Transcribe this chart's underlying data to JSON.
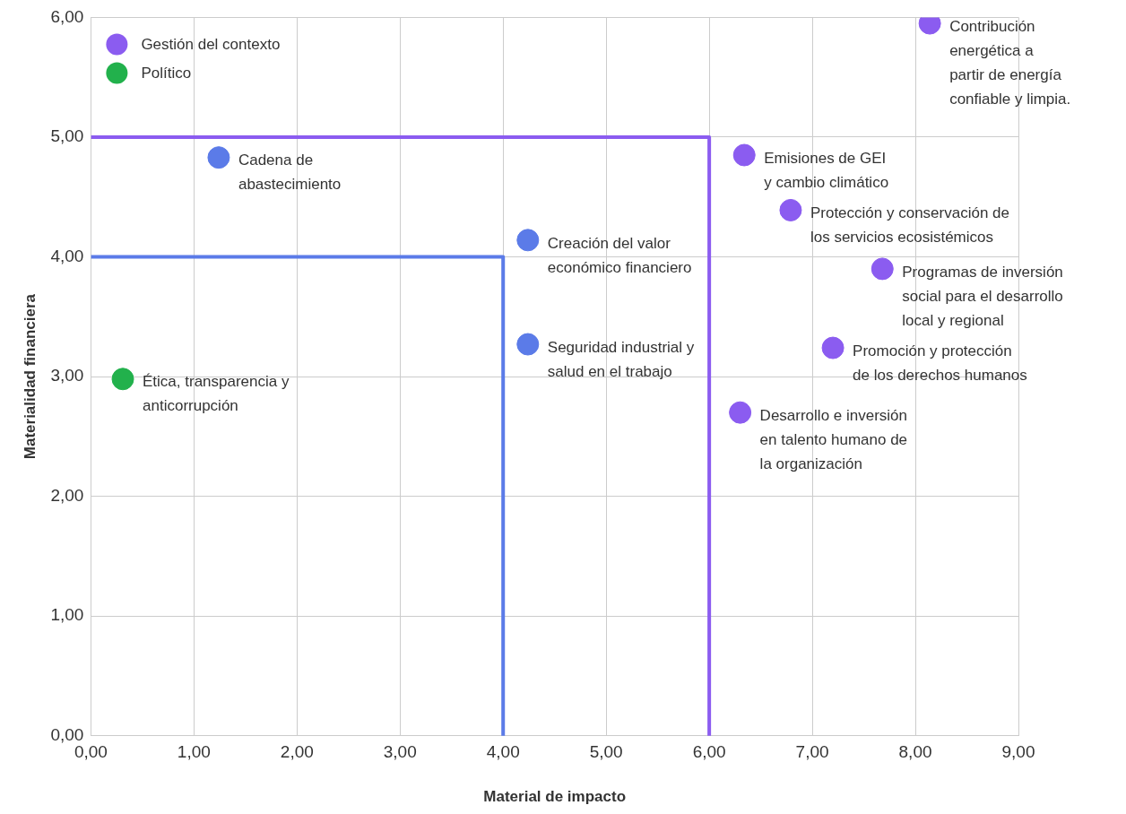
{
  "chart_data": {
    "type": "scatter",
    "xlabel": "Material de impacto",
    "ylabel": "Materialidad financiera",
    "xlim": [
      0,
      9
    ],
    "ylim": [
      0,
      6
    ],
    "xticks": [
      {
        "value": 0,
        "label": "0,00"
      },
      {
        "value": 1,
        "label": "1,00"
      },
      {
        "value": 2,
        "label": "2,00"
      },
      {
        "value": 3,
        "label": "3,00"
      },
      {
        "value": 4,
        "label": "4,00"
      },
      {
        "value": 5,
        "label": "5,00"
      },
      {
        "value": 6,
        "label": "6,00"
      },
      {
        "value": 7,
        "label": "7,00"
      },
      {
        "value": 8,
        "label": "8,00"
      },
      {
        "value": 9,
        "label": "9,00"
      }
    ],
    "yticks": [
      {
        "value": 0,
        "label": "0,00"
      },
      {
        "value": 1,
        "label": "1,00"
      },
      {
        "value": 2,
        "label": "2,00"
      },
      {
        "value": 3,
        "label": "3,00"
      },
      {
        "value": 4,
        "label": "4,00"
      },
      {
        "value": 5,
        "label": "5,00"
      },
      {
        "value": 6,
        "label": "6,00"
      }
    ],
    "grid": true,
    "legend": "top left",
    "marker": "circle",
    "series": [
      {
        "name": "Gestión del contexto",
        "color": "#8b5cf0",
        "x": [
          8.14,
          6.34,
          6.79,
          7.68,
          7.2,
          6.3
        ],
        "values": [
          5.95,
          4.85,
          4.39,
          3.9,
          3.24,
          2.7
        ]
      },
      {
        "name": "Político",
        "color": "#22b14c",
        "x": [
          0.31
        ],
        "values": [
          2.98
        ]
      },
      {
        "color": "#5b7be8",
        "x": [
          1.24,
          4.24,
          4.24
        ],
        "values": [
          4.83,
          4.14,
          3.27
        ]
      },
      {
        "type": "line",
        "color": "#5b7be8",
        "marker": "none",
        "x": [
          0,
          4,
          4
        ],
        "values": [
          4,
          4,
          0
        ]
      },
      {
        "type": "line",
        "color": "#8b5cf0",
        "marker": "none",
        "x": [
          0,
          6,
          6
        ],
        "values": [
          5,
          5,
          0
        ]
      }
    ],
    "annotations": [
      {
        "text": "Contribución\nenergética a\npartir de energía\nconfiable y limpia.",
        "x": 8.14,
        "y": 5.95
      },
      {
        "text": "Emisiones de GEI\ny cambio climático",
        "x": 6.34,
        "y": 4.85
      },
      {
        "text": "Protección y conservación de\nlos servicios ecosistémicos",
        "x": 6.79,
        "y": 4.39
      },
      {
        "text": "Programas de inversión\nsocial para el desarrollo\nlocal y regional",
        "x": 7.68,
        "y": 3.9
      },
      {
        "text": "Promoción y protección\nde los derechos humanos",
        "x": 7.2,
        "y": 3.24
      },
      {
        "text": "Desarrollo e inversión\nen talento humano de\nla organización",
        "x": 6.3,
        "y": 2.7
      },
      {
        "text": "Ética, transparencia y\nanticorrupción",
        "x": 0.31,
        "y": 2.98
      },
      {
        "text": "Cadena de\nabastecimiento",
        "x": 1.24,
        "y": 4.83
      },
      {
        "text": "Creación del valor\neconómico financiero",
        "x": 4.24,
        "y": 4.14
      },
      {
        "text": "Seguridad industrial y\nsalud en el trabajo",
        "x": 4.24,
        "y": 3.27
      }
    ]
  }
}
